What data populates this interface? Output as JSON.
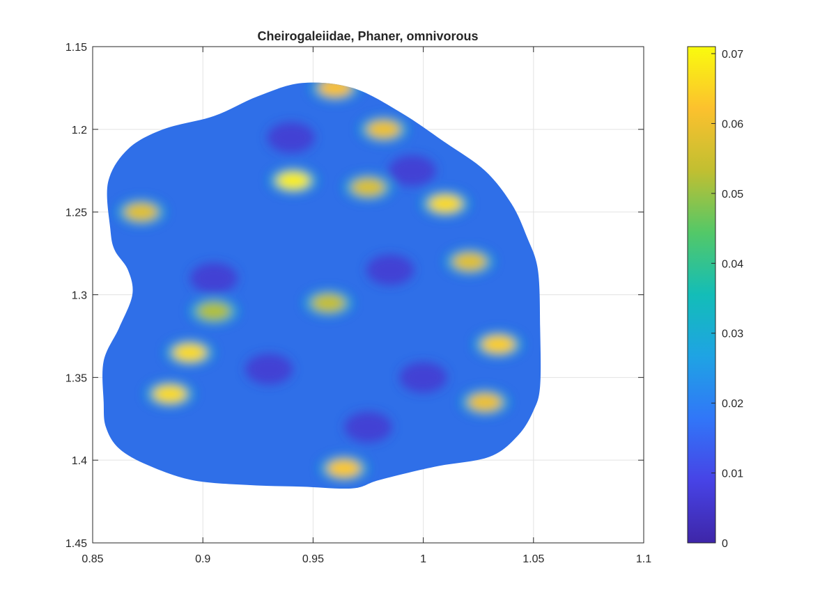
{
  "chart_data": {
    "type": "heatmap",
    "title": "Cheirogaleiidae, Phaner, omnivorous",
    "x_axis": {
      "lim": [
        0.85,
        1.1
      ],
      "ticks": [
        0.85,
        0.9,
        0.95,
        1.0,
        1.05,
        1.1
      ],
      "tick_labels": [
        "0.85",
        "0.9",
        "0.95",
        "1",
        "1.05",
        "1.1"
      ]
    },
    "y_axis": {
      "lim": [
        1.15,
        1.45
      ],
      "reversed": true,
      "ticks": [
        1.15,
        1.2,
        1.25,
        1.3,
        1.35,
        1.4,
        1.45
      ],
      "tick_labels": [
        "1.15",
        "1.2",
        "1.25",
        "1.3",
        "1.35",
        "1.4",
        "1.45"
      ]
    },
    "grid": true,
    "colormap": "parula",
    "colorbar": {
      "lim": [
        0,
        0.071
      ],
      "ticks": [
        0,
        0.01,
        0.02,
        0.03,
        0.04,
        0.05,
        0.06,
        0.07
      ],
      "tick_labels": [
        "0",
        "0.01",
        "0.02",
        "0.03",
        "0.04",
        "0.05",
        "0.06",
        "0.07"
      ],
      "location": "right"
    },
    "surface_outline": [
      [
        0.858,
        1.26
      ],
      [
        0.857,
        1.232
      ],
      [
        0.866,
        1.212
      ],
      [
        0.882,
        1.2
      ],
      [
        0.905,
        1.192
      ],
      [
        0.925,
        1.18
      ],
      [
        0.945,
        1.172
      ],
      [
        0.968,
        1.175
      ],
      [
        0.99,
        1.19
      ],
      [
        1.01,
        1.208
      ],
      [
        1.028,
        1.225
      ],
      [
        1.04,
        1.245
      ],
      [
        1.047,
        1.265
      ],
      [
        1.052,
        1.285
      ],
      [
        1.053,
        1.32
      ],
      [
        1.053,
        1.355
      ],
      [
        1.05,
        1.37
      ],
      [
        1.043,
        1.385
      ],
      [
        1.03,
        1.398
      ],
      [
        1.005,
        1.404
      ],
      [
        0.98,
        1.412
      ],
      [
        0.968,
        1.417
      ],
      [
        0.945,
        1.416
      ],
      [
        0.92,
        1.415
      ],
      [
        0.895,
        1.412
      ],
      [
        0.875,
        1.403
      ],
      [
        0.862,
        1.393
      ],
      [
        0.856,
        1.38
      ],
      [
        0.855,
        1.365
      ],
      [
        0.855,
        1.34
      ],
      [
        0.862,
        1.32
      ],
      [
        0.868,
        1.3
      ],
      [
        0.866,
        1.285
      ],
      [
        0.86,
        1.273
      ]
    ],
    "highlights": [
      {
        "x": 0.941,
        "y": 1.231,
        "value": 0.069
      },
      {
        "x": 0.96,
        "y": 1.175,
        "value": 0.062
      },
      {
        "x": 0.982,
        "y": 1.2,
        "value": 0.06
      },
      {
        "x": 1.01,
        "y": 1.245,
        "value": 0.066
      },
      {
        "x": 1.021,
        "y": 1.28,
        "value": 0.058
      },
      {
        "x": 1.034,
        "y": 1.33,
        "value": 0.064
      },
      {
        "x": 1.028,
        "y": 1.365,
        "value": 0.06
      },
      {
        "x": 0.964,
        "y": 1.405,
        "value": 0.063
      },
      {
        "x": 0.894,
        "y": 1.335,
        "value": 0.066
      },
      {
        "x": 0.885,
        "y": 1.36,
        "value": 0.066
      },
      {
        "x": 0.872,
        "y": 1.25,
        "value": 0.058
      },
      {
        "x": 0.905,
        "y": 1.31,
        "value": 0.052
      },
      {
        "x": 0.957,
        "y": 1.305,
        "value": 0.054
      },
      {
        "x": 0.975,
        "y": 1.235,
        "value": 0.057
      }
    ]
  }
}
